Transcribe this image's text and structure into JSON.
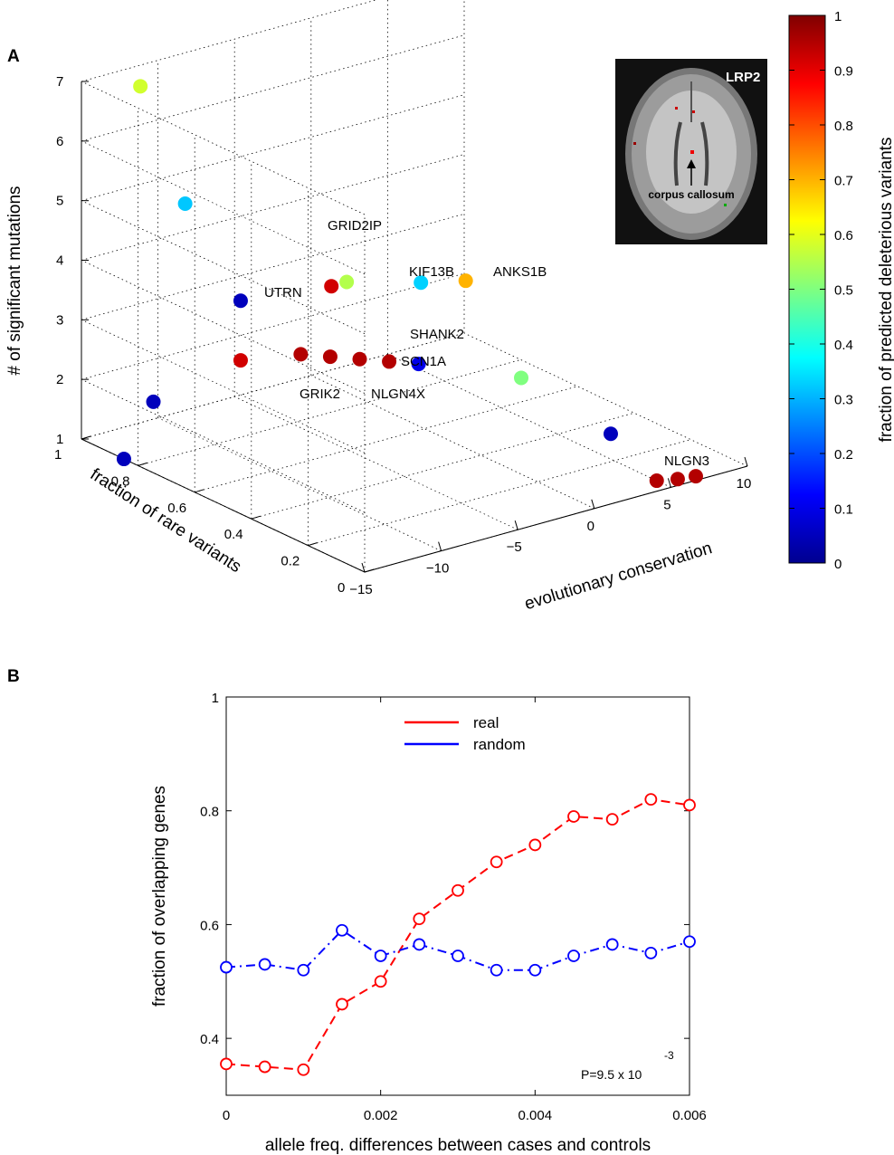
{
  "figure": {
    "panel_a_label": "A",
    "panel_b_label": "B"
  },
  "chart_data": [
    {
      "type": "scatter",
      "panel": "A",
      "xlabel": "fraction of rare variants",
      "ylabel": "evolutionary conservation",
      "zlabel": "# of significant mutations",
      "x_ticks": [
        "1",
        "0.8",
        "0.6",
        "0.4",
        "0.2",
        "0"
      ],
      "y_ticks": [
        "−15",
        "−10",
        "−5",
        "0",
        "5",
        "10"
      ],
      "z_ticks": [
        "1",
        "2",
        "3",
        "4",
        "5",
        "6",
        "7"
      ],
      "xlim": [
        0,
        1
      ],
      "ylim": [
        -15,
        10
      ],
      "zlim": [
        1,
        7
      ],
      "grid": true,
      "colorbar": {
        "label": "fraction of predicted deleterious variants",
        "ticks": [
          "0",
          "0.1",
          "0.2",
          "0.3",
          "0.4",
          "0.5",
          "0.6",
          "0.7",
          "0.8",
          "0.9",
          "1"
        ],
        "range": [
          0,
          1
        ],
        "colormap": "jet"
      },
      "inset": {
        "title": "LRP2",
        "annotation": "corpus callosum"
      },
      "gene_labels": [
        "GRID2IP",
        "UTRN",
        "KIF13B",
        "ANKS1B",
        "SHANK2",
        "SCN1A",
        "GRIK2",
        "NLGN4X",
        "NLGN3"
      ],
      "points": [
        {
          "rare": 0.9,
          "cons": -13,
          "n": 7,
          "del": 0.58
        },
        {
          "rare": 0.85,
          "cons": -11,
          "n": 5,
          "del": 0.32
        },
        {
          "rare": 0.6,
          "cons": -12,
          "n": 4,
          "del": 0.05
        },
        {
          "rare": 0.55,
          "cons": -7,
          "n": 4,
          "del": 0.92
        },
        {
          "rare": 0.55,
          "cons": -6,
          "n": 4,
          "del": 0.55
        },
        {
          "rare": 0.45,
          "cons": -3,
          "n": 4,
          "del": 0.33
        },
        {
          "rare": 0.4,
          "cons": -1,
          "n": 4,
          "del": 0.7
        },
        {
          "rare": 0.6,
          "cons": -12,
          "n": 3,
          "del": 0.92
        },
        {
          "rare": 0.55,
          "cons": -9,
          "n": 3,
          "del": 0.95
        },
        {
          "rare": 0.5,
          "cons": -8,
          "n": 3,
          "del": 0.95
        },
        {
          "rare": 0.45,
          "cons": -7,
          "n": 3,
          "del": 0.95
        },
        {
          "rare": 0.4,
          "cons": -6,
          "n": 3,
          "del": 0.95
        },
        {
          "rare": 0.35,
          "cons": -5,
          "n": 3,
          "del": 0.1
        },
        {
          "rare": 0.15,
          "cons": -2,
          "n": 3,
          "del": 0.5
        },
        {
          "rare": 0.8,
          "cons": -14,
          "n": 2,
          "del": 0.05
        },
        {
          "rare": 0.85,
          "cons": -15,
          "n": 1,
          "del": 0.05
        },
        {
          "rare": 0.05,
          "cons": 2,
          "n": 2,
          "del": 0.05
        },
        {
          "rare": 0.05,
          "cons": 5,
          "n": 1,
          "del": 0.95
        },
        {
          "rare": 0.03,
          "cons": 6,
          "n": 1,
          "del": 0.95
        },
        {
          "rare": 0.02,
          "cons": 7,
          "n": 1,
          "del": 0.95
        }
      ]
    },
    {
      "type": "line",
      "panel": "B",
      "xlabel": "allele freq. differences between cases and controls",
      "ylabel": "fraction of overlapping genes",
      "xlim": [
        0,
        0.006
      ],
      "ylim": [
        0.3,
        1
      ],
      "x_ticks": [
        "0",
        "0.002",
        "0.004",
        "0.006"
      ],
      "y_ticks": [
        "0.4",
        "0.6",
        "0.8",
        "1"
      ],
      "x": [
        0,
        0.0005,
        0.001,
        0.0015,
        0.002,
        0.0025,
        0.003,
        0.0035,
        0.004,
        0.0045,
        0.005,
        0.0055,
        0.006
      ],
      "series": [
        {
          "name": "real",
          "color": "#ff0000",
          "values": [
            0.355,
            0.35,
            0.345,
            0.46,
            0.5,
            0.61,
            0.66,
            0.71,
            0.74,
            0.79,
            0.785,
            0.82,
            0.81
          ]
        },
        {
          "name": "random",
          "color": "#0000ff",
          "values": [
            0.525,
            0.53,
            0.52,
            0.59,
            0.545,
            0.565,
            0.545,
            0.52,
            0.52,
            0.545,
            0.565,
            0.55,
            0.57
          ]
        }
      ],
      "legend": "top-center",
      "annotation": {
        "base": "P=9.5 x 10",
        "exponent": "-3"
      }
    }
  ]
}
